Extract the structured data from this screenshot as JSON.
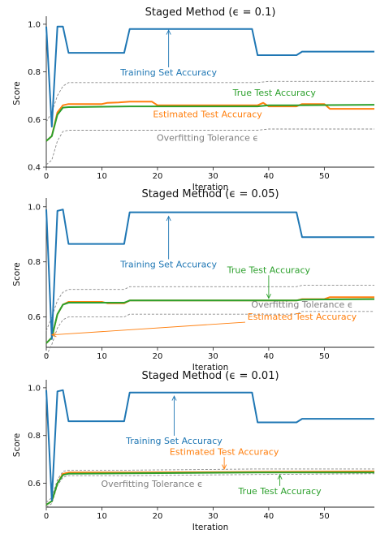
{
  "chart_data": [
    {
      "type": "line",
      "title": "Staged Method (ϵ = 0.1)",
      "xlabel": "Iteration",
      "ylabel": "Score",
      "xlim": [
        0,
        59
      ],
      "ylim": [
        0.4,
        1.02
      ],
      "xticks": [
        0,
        10,
        20,
        30,
        40,
        50
      ],
      "yticks": [
        0.4,
        0.6,
        0.8,
        1.0
      ],
      "ytick_labels": [
        "0.4",
        "0.6",
        "0.8",
        "1.0"
      ],
      "grid": false,
      "series": [
        {
          "name": "Training Set Accuracy",
          "color": "#1f77b4",
          "dashed": false,
          "points": [
            [
              0,
              0.99
            ],
            [
              1,
              0.57
            ],
            [
              2,
              0.99
            ],
            [
              3,
              0.99
            ],
            [
              4,
              0.88
            ],
            [
              10,
              0.88
            ],
            [
              14,
              0.88
            ],
            [
              15,
              0.98
            ],
            [
              37,
              0.98
            ],
            [
              38,
              0.87
            ],
            [
              45,
              0.87
            ],
            [
              46,
              0.885
            ],
            [
              59,
              0.885
            ]
          ]
        },
        {
          "name": "Estimated Test Accuracy",
          "color": "#ff7f0e",
          "dashed": false,
          "points": [
            [
              0,
              0.51
            ],
            [
              1,
              0.53
            ],
            [
              2,
              0.63
            ],
            [
              3,
              0.66
            ],
            [
              4,
              0.665
            ],
            [
              10,
              0.665
            ],
            [
              11,
              0.67
            ],
            [
              13,
              0.672
            ],
            [
              15,
              0.675
            ],
            [
              19,
              0.675
            ],
            [
              20,
              0.66
            ],
            [
              38,
              0.66
            ],
            [
              39,
              0.67
            ],
            [
              40,
              0.655
            ],
            [
              45,
              0.655
            ],
            [
              46,
              0.665
            ],
            [
              50,
              0.665
            ],
            [
              51,
              0.645
            ],
            [
              59,
              0.645
            ]
          ]
        },
        {
          "name": "True Test Accuracy",
          "color": "#2ca02c",
          "dashed": false,
          "points": [
            [
              0,
              0.51
            ],
            [
              1,
              0.53
            ],
            [
              2,
              0.62
            ],
            [
              3,
              0.65
            ],
            [
              4,
              0.652
            ],
            [
              15,
              0.655
            ],
            [
              38,
              0.655
            ],
            [
              40,
              0.66
            ],
            [
              45,
              0.66
            ],
            [
              59,
              0.662
            ]
          ]
        },
        {
          "name": "",
          "color": "#8a8a8a",
          "dashed": true,
          "points": [
            [
              0,
              0.59
            ],
            [
              1,
              0.63
            ],
            [
              2,
              0.7
            ],
            [
              3,
              0.74
            ],
            [
              4,
              0.755
            ],
            [
              38,
              0.755
            ],
            [
              40,
              0.76
            ],
            [
              59,
              0.76
            ]
          ]
        },
        {
          "name": "",
          "color": "#8a8a8a",
          "dashed": true,
          "points": [
            [
              0,
              0.41
            ],
            [
              1,
              0.43
            ],
            [
              2,
              0.51
            ],
            [
              3,
              0.55
            ],
            [
              4,
              0.555
            ],
            [
              38,
              0.555
            ],
            [
              40,
              0.56
            ],
            [
              59,
              0.56
            ]
          ]
        }
      ],
      "annotations": [
        {
          "text": "Training Set Accuracy",
          "color": "#1f77b4",
          "x": 22,
          "y": 0.785,
          "arrow_to": [
            22,
            0.975
          ]
        },
        {
          "text": "True Test Accuracy",
          "color": "#2ca02c",
          "x": 41,
          "y": 0.7
        },
        {
          "text": "Estimated Test Accuracy",
          "color": "#ff7f0e",
          "x": 29,
          "y": 0.61
        },
        {
          "text": "Overfitting Tolerance ϵ",
          "color": "#7f7f7f",
          "x": 29,
          "y": 0.51
        }
      ]
    },
    {
      "type": "line",
      "title": "Staged Method (ϵ = 0.05)",
      "xlabel": "Iteration",
      "ylabel": "Score",
      "xlim": [
        0,
        59
      ],
      "ylim": [
        0.49,
        1.02
      ],
      "xticks": [
        0,
        10,
        20,
        30,
        40,
        50
      ],
      "yticks": [
        0.6,
        0.8,
        1.0
      ],
      "ytick_labels": [
        "0.6",
        "0.8",
        "1.0"
      ],
      "grid": false,
      "series": [
        {
          "name": "Training Set Accuracy",
          "color": "#1f77b4",
          "dashed": false,
          "points": [
            [
              0,
              0.99
            ],
            [
              1,
              0.52
            ],
            [
              2,
              0.985
            ],
            [
              3,
              0.99
            ],
            [
              4,
              0.865
            ],
            [
              14,
              0.865
            ],
            [
              15,
              0.98
            ],
            [
              45,
              0.98
            ],
            [
              46,
              0.89
            ],
            [
              59,
              0.89
            ]
          ]
        },
        {
          "name": "Estimated Test Accuracy",
          "color": "#ff7f0e",
          "dashed": false,
          "points": [
            [
              0,
              0.505
            ],
            [
              1,
              0.525
            ],
            [
              2,
              0.61
            ],
            [
              3,
              0.645
            ],
            [
              4,
              0.655
            ],
            [
              10,
              0.655
            ],
            [
              11,
              0.65
            ],
            [
              14,
              0.65
            ],
            [
              15,
              0.66
            ],
            [
              45,
              0.66
            ],
            [
              46,
              0.665
            ],
            [
              50,
              0.665
            ],
            [
              51,
              0.672
            ],
            [
              59,
              0.672
            ]
          ]
        },
        {
          "name": "True Test Accuracy",
          "color": "#2ca02c",
          "dashed": false,
          "points": [
            [
              0,
              0.505
            ],
            [
              1,
              0.525
            ],
            [
              2,
              0.61
            ],
            [
              3,
              0.645
            ],
            [
              4,
              0.652
            ],
            [
              14,
              0.652
            ],
            [
              15,
              0.66
            ],
            [
              45,
              0.66
            ],
            [
              46,
              0.663
            ],
            [
              59,
              0.665
            ]
          ]
        },
        {
          "name": "",
          "color": "#8a8a8a",
          "dashed": true,
          "points": [
            [
              0,
              0.55
            ],
            [
              1,
              0.6
            ],
            [
              2,
              0.66
            ],
            [
              3,
              0.69
            ],
            [
              4,
              0.7
            ],
            [
              14,
              0.7
            ],
            [
              15,
              0.71
            ],
            [
              45,
              0.71
            ],
            [
              46,
              0.715
            ],
            [
              59,
              0.715
            ]
          ]
        },
        {
          "name": "",
          "color": "#8a8a8a",
          "dashed": true,
          "points": [
            [
              0,
              0.46
            ],
            [
              1,
              0.5
            ],
            [
              2,
              0.56
            ],
            [
              3,
              0.59
            ],
            [
              4,
              0.6
            ],
            [
              14,
              0.6
            ],
            [
              15,
              0.61
            ],
            [
              45,
              0.61
            ],
            [
              46,
              0.62
            ],
            [
              59,
              0.62
            ]
          ]
        }
      ],
      "annotations": [
        {
          "text": "Training Set Accuracy",
          "color": "#1f77b4",
          "x": 22,
          "y": 0.78,
          "arrow_to": [
            22,
            0.965
          ]
        },
        {
          "text": "True Test Accuracy",
          "color": "#2ca02c",
          "x": 40,
          "y": 0.76,
          "arrow_to": [
            40,
            0.668
          ]
        },
        {
          "text": "Overfitting Tolerance ϵ",
          "color": "#7f7f7f",
          "x": 46,
          "y": 0.635
        },
        {
          "text": "Estimated Test Accuracy",
          "color": "#ff7f0e",
          "x": 46,
          "y": 0.59,
          "arrow_to": [
            1,
            0.535
          ]
        }
      ]
    },
    {
      "type": "line",
      "title": "Staged Method (ϵ = 0.01)",
      "xlabel": "Iteration",
      "ylabel": "Score",
      "xlim": [
        0,
        59
      ],
      "ylim": [
        0.5,
        1.02
      ],
      "xticks": [
        0,
        10,
        20,
        30,
        40,
        50
      ],
      "yticks": [
        0.6,
        0.8,
        1.0
      ],
      "ytick_labels": [
        "0.6",
        "0.8",
        "1.0"
      ],
      "grid": false,
      "series": [
        {
          "name": "Training Set Accuracy",
          "color": "#1f77b4",
          "dashed": false,
          "points": [
            [
              0,
              0.99
            ],
            [
              1,
              0.53
            ],
            [
              2,
              0.985
            ],
            [
              3,
              0.99
            ],
            [
              4,
              0.86
            ],
            [
              14,
              0.86
            ],
            [
              15,
              0.98
            ],
            [
              37,
              0.98
            ],
            [
              38,
              0.855
            ],
            [
              45,
              0.855
            ],
            [
              46,
              0.87
            ],
            [
              59,
              0.87
            ]
          ]
        },
        {
          "name": "Estimated Test Accuracy",
          "color": "#ff7f0e",
          "dashed": false,
          "points": [
            [
              0,
              0.51
            ],
            [
              1,
              0.525
            ],
            [
              2,
              0.6
            ],
            [
              3,
              0.64
            ],
            [
              4,
              0.645
            ],
            [
              15,
              0.645
            ],
            [
              38,
              0.648
            ],
            [
              59,
              0.65
            ]
          ]
        },
        {
          "name": "True Test Accuracy",
          "color": "#2ca02c",
          "dashed": false,
          "points": [
            [
              0,
              0.51
            ],
            [
              1,
              0.525
            ],
            [
              2,
              0.6
            ],
            [
              3,
              0.635
            ],
            [
              4,
              0.64
            ],
            [
              15,
              0.642
            ],
            [
              38,
              0.645
            ],
            [
              59,
              0.645
            ]
          ]
        },
        {
          "name": "",
          "color": "#8a8a8a",
          "dashed": true,
          "points": [
            [
              0,
              0.52
            ],
            [
              1,
              0.54
            ],
            [
              2,
              0.615
            ],
            [
              3,
              0.65
            ],
            [
              4,
              0.655
            ],
            [
              15,
              0.655
            ],
            [
              38,
              0.66
            ],
            [
              59,
              0.66
            ]
          ]
        },
        {
          "name": "",
          "color": "#8a8a8a",
          "dashed": true,
          "points": [
            [
              0,
              0.5
            ],
            [
              1,
              0.515
            ],
            [
              2,
              0.59
            ],
            [
              3,
              0.625
            ],
            [
              4,
              0.632
            ],
            [
              15,
              0.632
            ],
            [
              38,
              0.637
            ],
            [
              59,
              0.64
            ]
          ]
        }
      ],
      "annotations": [
        {
          "text": "Training Set Accuracy",
          "color": "#1f77b4",
          "x": 23,
          "y": 0.765,
          "arrow_to": [
            23,
            0.965
          ]
        },
        {
          "text": "Estimated Test Accuracy",
          "color": "#ff7f0e",
          "x": 32,
          "y": 0.72,
          "arrow_to": [
            32,
            0.66
          ]
        },
        {
          "text": "Overfitting Tolerance ϵ",
          "color": "#7f7f7f",
          "x": 19,
          "y": 0.585
        },
        {
          "text": "True Test Accuracy",
          "color": "#2ca02c",
          "x": 42,
          "y": 0.555,
          "arrow_to": [
            42,
            0.635
          ]
        }
      ]
    }
  ]
}
